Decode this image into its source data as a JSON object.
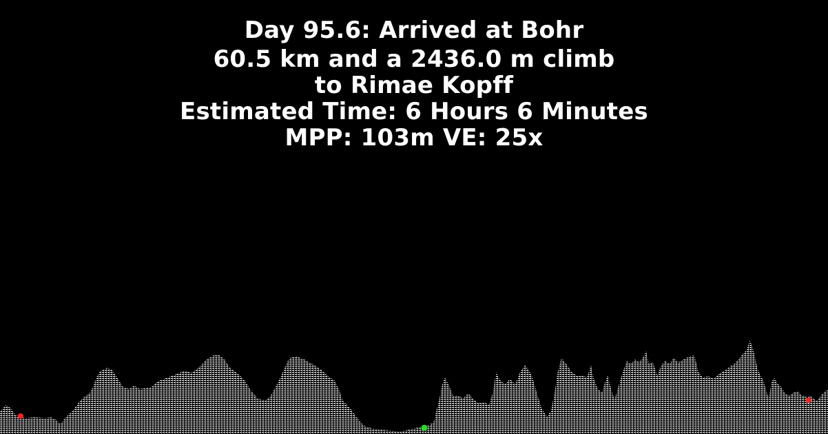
{
  "header": {
    "line1": "Day 95.6: Arrived at Bohr",
    "line2": "60.5 km and a 2436.0 m climb",
    "line3": "to Rimae Kopff",
    "line4": "Estimated Time: 6 Hours 6 Minutes",
    "line5": "MPP: 103m VE: 25x"
  },
  "colors": {
    "background": "#000000",
    "text": "#ffffff",
    "terrain": "#ffffff",
    "marker_red": "#ff2020",
    "marker_green": "#22dd22"
  },
  "markers": [
    {
      "name": "start-marker",
      "color": "red"
    },
    {
      "name": "current-position-marker",
      "color": "green"
    },
    {
      "name": "destination-marker",
      "color": "red"
    }
  ]
}
